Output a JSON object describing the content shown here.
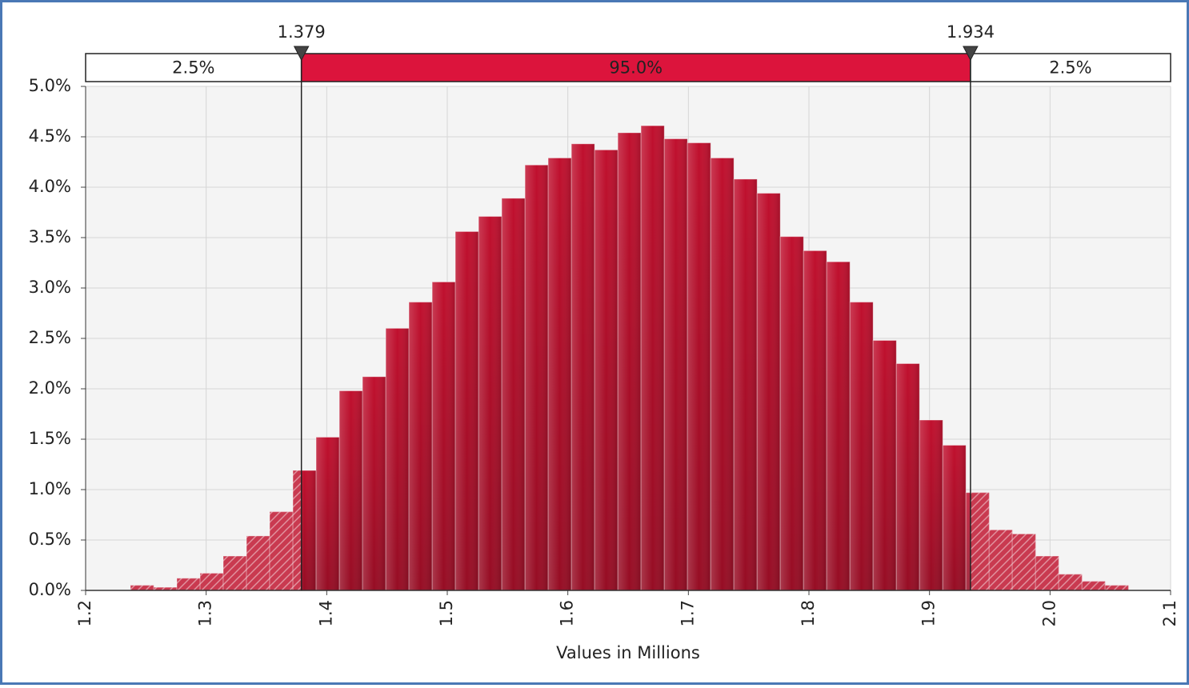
{
  "chart_data": {
    "type": "histogram",
    "x_label": "Values in Millions",
    "bins": [
      1.2372,
      1.2565,
      1.2757,
      1.295,
      1.3142,
      1.3335,
      1.3527,
      1.372,
      1.3912,
      1.4105,
      1.4297,
      1.449,
      1.4682,
      1.4875,
      1.5067,
      1.526,
      1.5452,
      1.5645,
      1.5837,
      1.603,
      1.6222,
      1.6415,
      1.6607,
      1.68,
      1.6992,
      1.7185,
      1.7377,
      1.757,
      1.7762,
      1.7955,
      1.8147,
      1.834,
      1.8532,
      1.8725,
      1.8917,
      1.911,
      1.9302,
      1.9495,
      1.9687,
      1.988,
      2.0072,
      2.0265,
      2.0457,
      2.065
    ],
    "values": [
      0.05,
      0.03,
      0.12,
      0.17,
      0.34,
      0.54,
      0.78,
      1.19,
      1.52,
      1.98,
      2.12,
      2.6,
      2.86,
      3.06,
      3.56,
      3.71,
      3.89,
      4.22,
      4.29,
      4.43,
      4.37,
      4.54,
      4.61,
      4.48,
      4.44,
      4.29,
      4.08,
      3.94,
      3.51,
      3.37,
      3.26,
      2.86,
      2.48,
      2.25,
      1.69,
      1.44,
      0.97,
      0.6,
      0.56,
      0.34,
      0.16,
      0.09,
      0.05
    ],
    "color": "#c0102e",
    "tail_color": "#c93a50",
    "xlim": [
      1.2,
      2.1
    ],
    "xticks": [
      1.2,
      1.3,
      1.4,
      1.5,
      1.6,
      1.7,
      1.8,
      1.9,
      {
        "value": 2.0,
        "label": "2.0"
      },
      2.1
    ],
    "ylim": [
      0,
      5
    ],
    "yticks": [
      {
        "value": 0,
        "label": "0.0%"
      },
      {
        "value": 0.5,
        "label": "0.5%"
      },
      {
        "value": 1,
        "label": "1.0%"
      },
      {
        "value": 1.5,
        "label": "1.5%"
      },
      {
        "value": 2,
        "label": "2.0%"
      },
      {
        "value": 2.5,
        "label": "2.5%"
      },
      {
        "value": 3,
        "label": "3.0%"
      },
      {
        "value": 3.5,
        "label": "3.5%"
      },
      {
        "value": 4,
        "label": "4.0%"
      },
      {
        "value": 4.5,
        "label": "4.5%"
      },
      {
        "value": 5,
        "label": "5.0%"
      }
    ],
    "grid": true,
    "delimiters": [
      1.379,
      1.934
    ],
    "regions": {
      "values": [
        2.5,
        95,
        2.5
      ],
      "value_labels": [
        "2.5%",
        "95.0%",
        "2.5%"
      ],
      "color": "#dc143c"
    }
  }
}
